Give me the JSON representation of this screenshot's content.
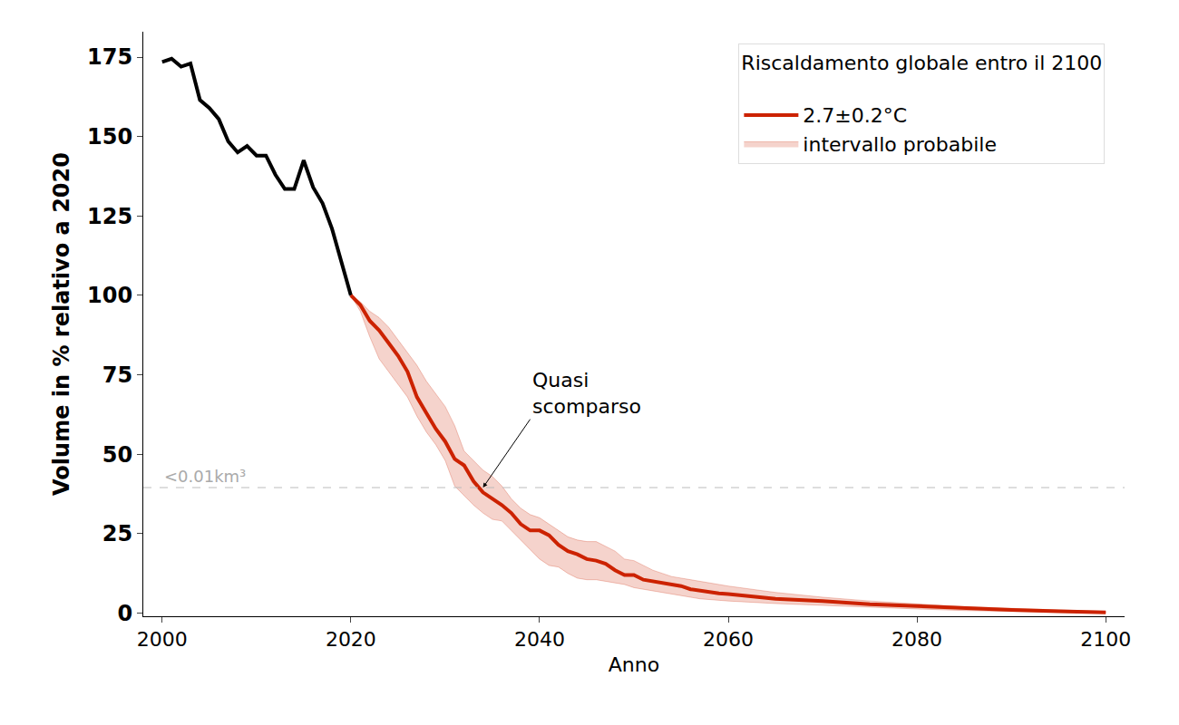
{
  "chart_data": {
    "type": "line",
    "x_label": "Anno",
    "y_label": "Volume in % relativo a 2020",
    "legend_title": "Riscaldamento globale entro il 2100",
    "legend": "upper right",
    "grid": false,
    "xlim": [
      1998,
      2102
    ],
    "xticks": [
      2000,
      2020,
      2040,
      2060,
      2080,
      2100
    ],
    "ylim": [
      -1,
      183
    ],
    "yticks": [
      0,
      25,
      50,
      75,
      100,
      125,
      150,
      175
    ],
    "series": [
      {
        "color": "#000000",
        "x": [
          2000,
          2001,
          2002,
          2003,
          2004,
          2005,
          2006,
          2007,
          2008,
          2009,
          2010,
          2011,
          2012,
          2013,
          2014,
          2015,
          2016,
          2017,
          2018,
          2019,
          2020
        ],
        "values": [
          173.5,
          174.5,
          172,
          173,
          161.5,
          159,
          155.5,
          148.5,
          145,
          147,
          144,
          144,
          138,
          133.5,
          133.5,
          142.5,
          134,
          129,
          121,
          111,
          100
        ]
      },
      {
        "name": "2.7±0.2°C",
        "color": "#cc2200",
        "x": [
          2020,
          2021,
          2022,
          2023,
          2024,
          2025,
          2026,
          2027,
          2028,
          2029,
          2030,
          2031,
          2032,
          2033,
          2034,
          2035,
          2036,
          2037,
          2038,
          2039,
          2040,
          2041,
          2042,
          2043,
          2044,
          2045,
          2046,
          2047,
          2048,
          2049,
          2050,
          2051,
          2052,
          2053,
          2054,
          2055,
          2056,
          2057,
          2058,
          2059,
          2060,
          2065,
          2070,
          2075,
          2080,
          2085,
          2090,
          2095,
          2100
        ],
        "values": [
          100,
          97,
          92,
          89,
          85,
          81,
          76,
          68,
          63,
          58,
          54,
          48.5,
          46.5,
          41.5,
          38,
          36,
          34,
          31.5,
          28,
          26,
          26,
          24.5,
          21.5,
          19.5,
          18.5,
          17,
          16.5,
          15.5,
          13.5,
          12,
          12,
          10.5,
          10,
          9.5,
          9,
          8.5,
          7.5,
          7,
          6.5,
          6.2,
          6,
          4.5,
          3.8,
          2.8,
          2.2,
          1.5,
          1,
          0.6,
          0.2
        ]
      },
      {
        "name": "intervallo probabile",
        "type": "band",
        "color": "#cc2200",
        "x": [
          2020,
          2021,
          2022,
          2023,
          2024,
          2025,
          2026,
          2027,
          2028,
          2029,
          2030,
          2031,
          2032,
          2033,
          2034,
          2035,
          2036,
          2037,
          2038,
          2039,
          2040,
          2041,
          2042,
          2043,
          2044,
          2045,
          2046,
          2047,
          2048,
          2049,
          2050,
          2051,
          2052,
          2053,
          2054,
          2055,
          2056,
          2057,
          2058,
          2059,
          2060,
          2065,
          2070,
          2075,
          2080,
          2085,
          2090,
          2095,
          2100
        ],
        "lower": [
          100,
          95,
          87,
          80,
          76,
          72,
          68,
          62,
          57,
          53,
          48,
          40,
          37,
          34,
          31.5,
          29.5,
          29,
          26,
          23,
          20,
          17,
          15,
          14.5,
          12.5,
          11,
          10.5,
          10.5,
          10,
          9.5,
          9,
          8,
          7.5,
          7,
          6.5,
          6,
          5.5,
          5,
          4.5,
          4.2,
          4,
          3.8,
          3,
          2.5,
          1.8,
          1.3,
          0.8,
          0.5,
          0.2,
          0
        ],
        "upper": [
          100,
          98,
          95,
          93,
          90,
          86,
          82,
          78,
          73,
          69,
          65,
          59,
          51,
          48,
          45,
          43,
          40,
          36,
          33,
          31,
          30,
          28,
          26,
          24,
          23,
          22.5,
          22.5,
          21,
          19.5,
          17,
          16.5,
          15,
          13.5,
          12.5,
          11.5,
          11,
          10.5,
          10,
          9.5,
          9,
          8.5,
          6.5,
          5,
          3.8,
          3,
          2,
          1.5,
          1,
          0.5
        ]
      }
    ],
    "reference_line": {
      "y": 39.5,
      "label": "<0.01km³",
      "label_x": 2000,
      "line_style": "dashed"
    },
    "annotations": [
      {
        "text": "Quasi\nscomparso",
        "x": 2034,
        "y": 39.5,
        "text_x": 2039,
        "text_y": 61
      }
    ]
  }
}
